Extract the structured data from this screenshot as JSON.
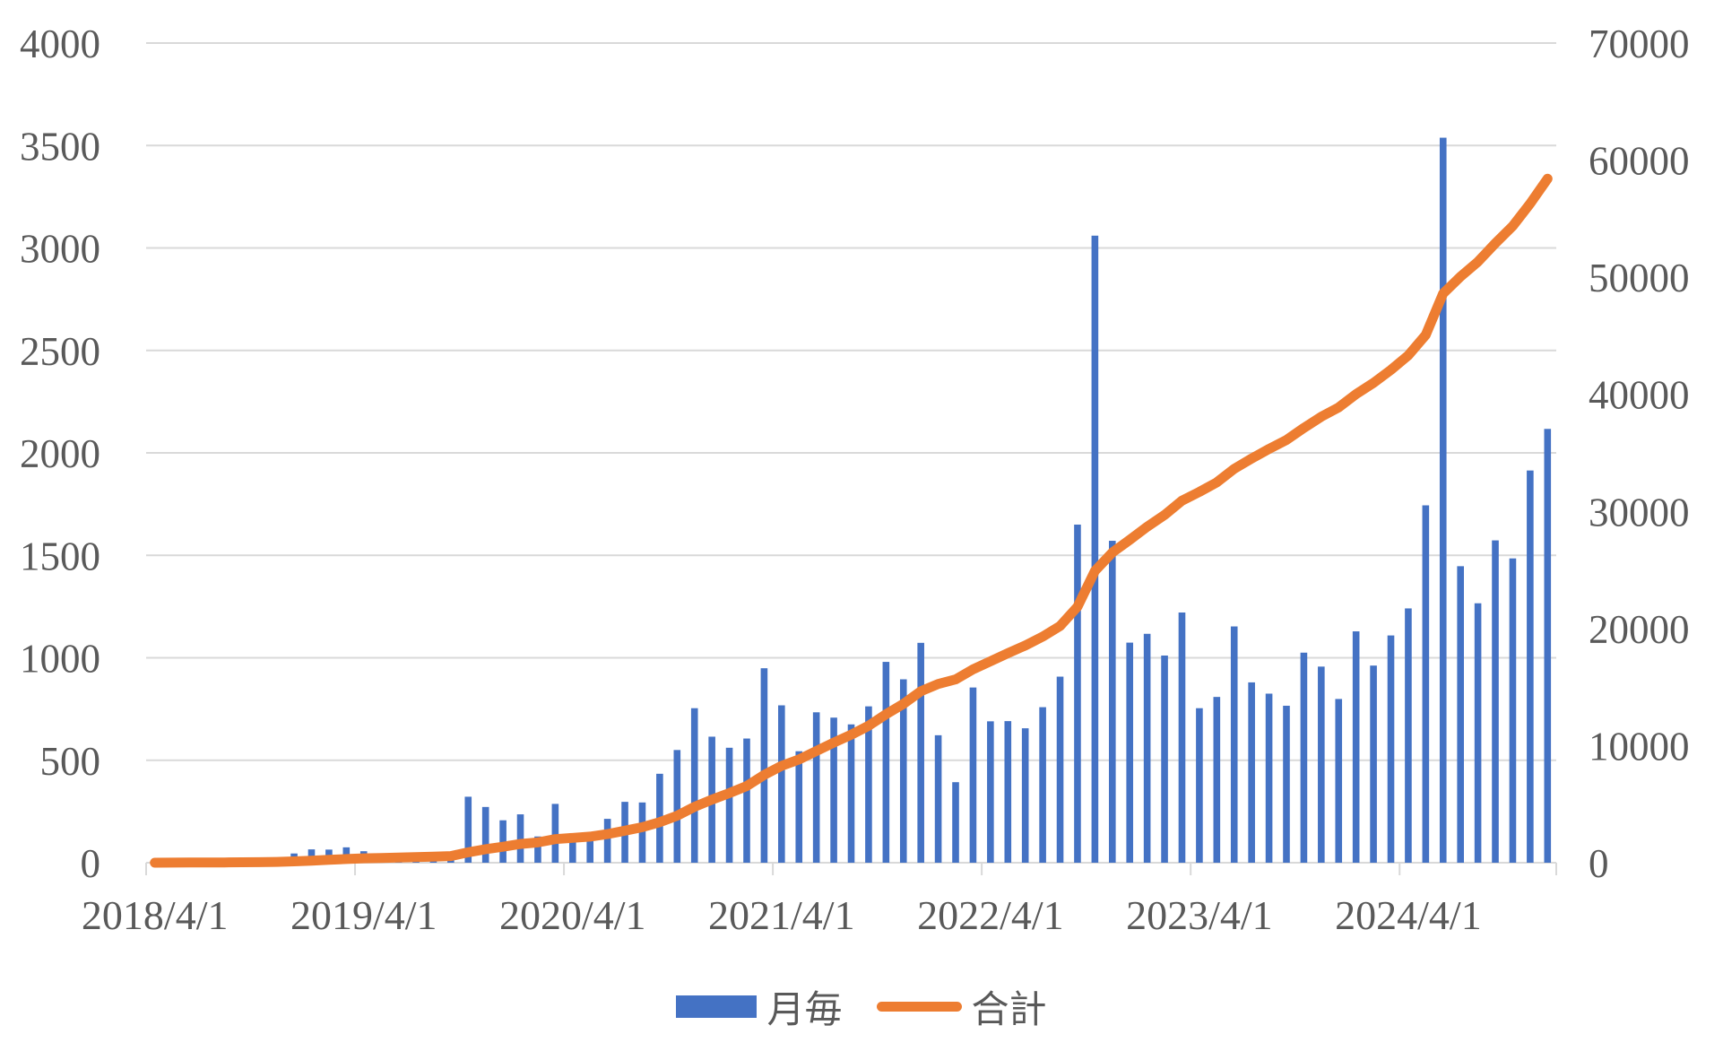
{
  "chart_data": {
    "type": "combo",
    "title": "",
    "grid": true,
    "legend_position": "bottom",
    "categories": [
      "2018/4",
      "2018/5",
      "2018/6",
      "2018/7",
      "2018/8",
      "2018/9",
      "2018/10",
      "2018/11",
      "2018/12",
      "2019/1",
      "2019/2",
      "2019/3",
      "2019/4",
      "2019/5",
      "2019/6",
      "2019/7",
      "2019/8",
      "2019/9",
      "2019/10",
      "2019/11",
      "2019/12",
      "2020/1",
      "2020/2",
      "2020/3",
      "2020/4",
      "2020/5",
      "2020/6",
      "2020/7",
      "2020/8",
      "2020/9",
      "2020/10",
      "2020/11",
      "2020/12",
      "2021/1",
      "2021/2",
      "2021/3",
      "2021/4",
      "2021/5",
      "2021/6",
      "2021/7",
      "2021/8",
      "2021/9",
      "2021/10",
      "2021/11",
      "2021/12",
      "2022/1",
      "2022/2",
      "2022/3",
      "2022/4",
      "2022/5",
      "2022/6",
      "2022/7",
      "2022/8",
      "2022/9",
      "2022/10",
      "2022/11",
      "2022/12",
      "2023/1",
      "2023/2",
      "2023/3",
      "2023/4",
      "2023/5",
      "2023/6",
      "2023/7",
      "2023/8",
      "2023/9",
      "2023/10",
      "2023/11",
      "2023/12",
      "2024/1",
      "2024/2",
      "2024/3",
      "2024/4",
      "2024/5",
      "2024/6",
      "2024/7",
      "2024/8",
      "2024/9",
      "2024/10",
      "2024/11",
      "2024/12"
    ],
    "series": [
      {
        "name": "月毎",
        "type": "bar",
        "axis": "left",
        "color": "#4472C4",
        "values": [
          3,
          4,
          5,
          6,
          8,
          10,
          12,
          20,
          45,
          65,
          64,
          75,
          56,
          30,
          34,
          38,
          42,
          46,
          322,
          272,
          207,
          236,
          128,
          287,
          105,
          106,
          214,
          297,
          294,
          434,
          550,
          754,
          615,
          561,
          606,
          949,
          768,
          544,
          734,
          708,
          675,
          763,
          980,
          895,
          1073,
          622,
          393,
          855,
          690,
          691,
          656,
          759,
          908,
          1650,
          3060,
          1571,
          1074,
          1117,
          1011,
          1221,
          754,
          809,
          1153,
          880,
          825,
          766,
          1025,
          957,
          799,
          1129,
          962,
          1109,
          1241,
          1744,
          3538,
          1447,
          1266,
          1573,
          1485,
          1914,
          2117
        ]
      },
      {
        "name": "合計",
        "type": "line",
        "axis": "right",
        "color": "#ED7D31",
        "values": [
          3,
          7,
          12,
          18,
          26,
          36,
          48,
          68,
          113,
          178,
          242,
          317,
          373,
          403,
          437,
          475,
          517,
          563,
          885,
          1157,
          1364,
          1600,
          1728,
          2015,
          2120,
          2226,
          2440,
          2737,
          3031,
          3465,
          4015,
          4769,
          5384,
          5945,
          6551,
          7500,
          8268,
          8812,
          9546,
          10254,
          10929,
          11692,
          12672,
          13567,
          14640,
          15262,
          15655,
          16510,
          17200,
          17891,
          18547,
          19306,
          20214,
          21864,
          24924,
          26495,
          27569,
          28686,
          29697,
          30918,
          31672,
          32481,
          33634,
          34514,
          35339,
          36105,
          37130,
          38087,
          38886,
          40015,
          40977,
          42086,
          43327,
          45071,
          48609,
          50056,
          51322,
          52895,
          54380,
          56294,
          58411
        ]
      }
    ],
    "left_axis": {
      "min": 0,
      "max": 4000,
      "step": 500,
      "tick_labels": [
        "0",
        "500",
        "1000",
        "1500",
        "2000",
        "2500",
        "3000",
        "3500",
        "4000"
      ]
    },
    "right_axis": {
      "min": 0,
      "max": 70000,
      "step": 10000,
      "tick_labels": [
        "0",
        "10000",
        "20000",
        "30000",
        "40000",
        "50000",
        "60000",
        "70000"
      ]
    },
    "x_ticks": [
      {
        "label": "2018/4/1",
        "month_index": 0
      },
      {
        "label": "2019/4/1",
        "month_index": 12
      },
      {
        "label": "2020/4/1",
        "month_index": 24
      },
      {
        "label": "2021/4/1",
        "month_index": 36
      },
      {
        "label": "2022/4/1",
        "month_index": 48
      },
      {
        "label": "2023/4/1",
        "month_index": 60
      },
      {
        "label": "2024/4/1",
        "month_index": 72
      }
    ]
  },
  "legend": {
    "monthly_label": "月毎",
    "total_label": "合計"
  },
  "colors": {
    "bar": "#4472C4",
    "line": "#ED7D31",
    "gridline": "#D9D9D9",
    "axis_text": "#595959",
    "background": "#FFFFFF"
  }
}
